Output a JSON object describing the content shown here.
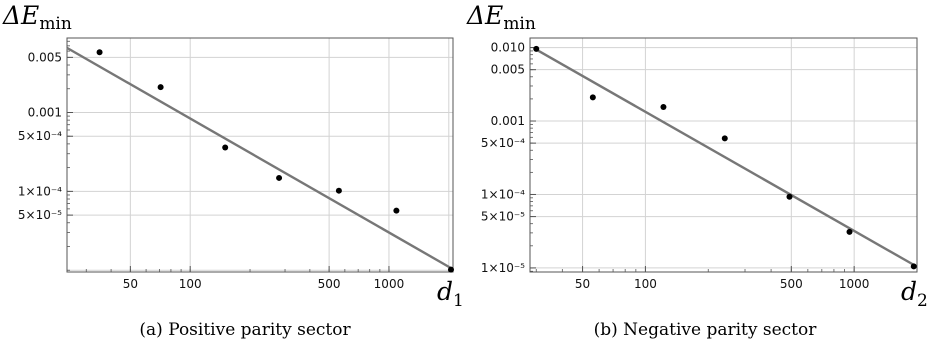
{
  "chart_data": [
    {
      "type": "scatter",
      "log_x": true,
      "log_y": true,
      "ylabel": "ΔE",
      "ylabel_sub": "min",
      "xlabel": "d",
      "xlabel_sub": "1",
      "caption": "(a) Positive parity sector",
      "xlim": [
        24,
        2100
      ],
      "ylim": [
        9.5e-06,
        0.0088
      ],
      "x_ticks": [
        {
          "v": 50,
          "label": "50"
        },
        {
          "v": 100,
          "label": "100"
        },
        {
          "v": 500,
          "label": "500"
        },
        {
          "v": 1000,
          "label": "1000"
        }
      ],
      "y_ticks": [
        {
          "v": 0.005,
          "label": "0.005"
        },
        {
          "v": 0.001,
          "label": "0.001"
        },
        {
          "v": 0.0005,
          "label": "5×10⁻⁴"
        },
        {
          "v": 0.0001,
          "label": "1×10⁻⁴"
        },
        {
          "v": 5e-05,
          "label": "5×10⁻⁵"
        }
      ],
      "x_grid": [
        50,
        100,
        500,
        1000,
        2000
      ],
      "y_grid": [
        0.005,
        0.001,
        0.0005,
        0.0001,
        5e-05,
        1e-05
      ],
      "points": [
        {
          "x": 35,
          "y": 0.0058
        },
        {
          "x": 71,
          "y": 0.0021
        },
        {
          "x": 150,
          "y": 0.00036
        },
        {
          "x": 280,
          "y": 0.000148
        },
        {
          "x": 560,
          "y": 0.000102
        },
        {
          "x": 1090,
          "y": 5.7e-05
        },
        {
          "x": 2100,
          "y": 1.02e-05
        }
      ],
      "fit_line": [
        {
          "x": 24,
          "y": 0.0066
        },
        {
          "x": 2100,
          "y": 1.03e-05
        }
      ]
    },
    {
      "type": "scatter",
      "log_x": true,
      "log_y": true,
      "ylabel": "ΔE",
      "ylabel_sub": "min",
      "xlabel": "d",
      "xlabel_sub": "2",
      "caption": "(b) Negative parity sector",
      "xlim": [
        28,
        2000
      ],
      "ylim": [
        8.8e-06,
        0.0135
      ],
      "x_ticks": [
        {
          "v": 50,
          "label": "50"
        },
        {
          "v": 100,
          "label": "100"
        },
        {
          "v": 500,
          "label": "500"
        },
        {
          "v": 1000,
          "label": "1000"
        }
      ],
      "y_ticks": [
        {
          "v": 0.01,
          "label": "0.010"
        },
        {
          "v": 0.005,
          "label": "0.005"
        },
        {
          "v": 0.001,
          "label": "0.001"
        },
        {
          "v": 0.0005,
          "label": "5×10⁻⁴"
        },
        {
          "v": 0.0001,
          "label": "1×10⁻⁴"
        },
        {
          "v": 5e-05,
          "label": "5×10⁻⁵"
        },
        {
          "v": 1e-05,
          "label": "1×10⁻⁵"
        }
      ],
      "x_grid": [
        50,
        100,
        500,
        1000
      ],
      "y_grid": [
        0.01,
        0.005,
        0.001,
        0.0005,
        0.0001,
        5e-05,
        1e-05
      ],
      "points": [
        {
          "x": 30,
          "y": 0.0096
        },
        {
          "x": 56,
          "y": 0.0021
        },
        {
          "x": 122,
          "y": 0.00155
        },
        {
          "x": 240,
          "y": 0.00058
        },
        {
          "x": 490,
          "y": 9.3e-05
        },
        {
          "x": 950,
          "y": 3.1e-05
        },
        {
          "x": 1930,
          "y": 1.05e-05
        }
      ],
      "fit_line": [
        {
          "x": 30,
          "y": 0.0094
        },
        {
          "x": 1930,
          "y": 1.1e-05
        }
      ]
    }
  ]
}
